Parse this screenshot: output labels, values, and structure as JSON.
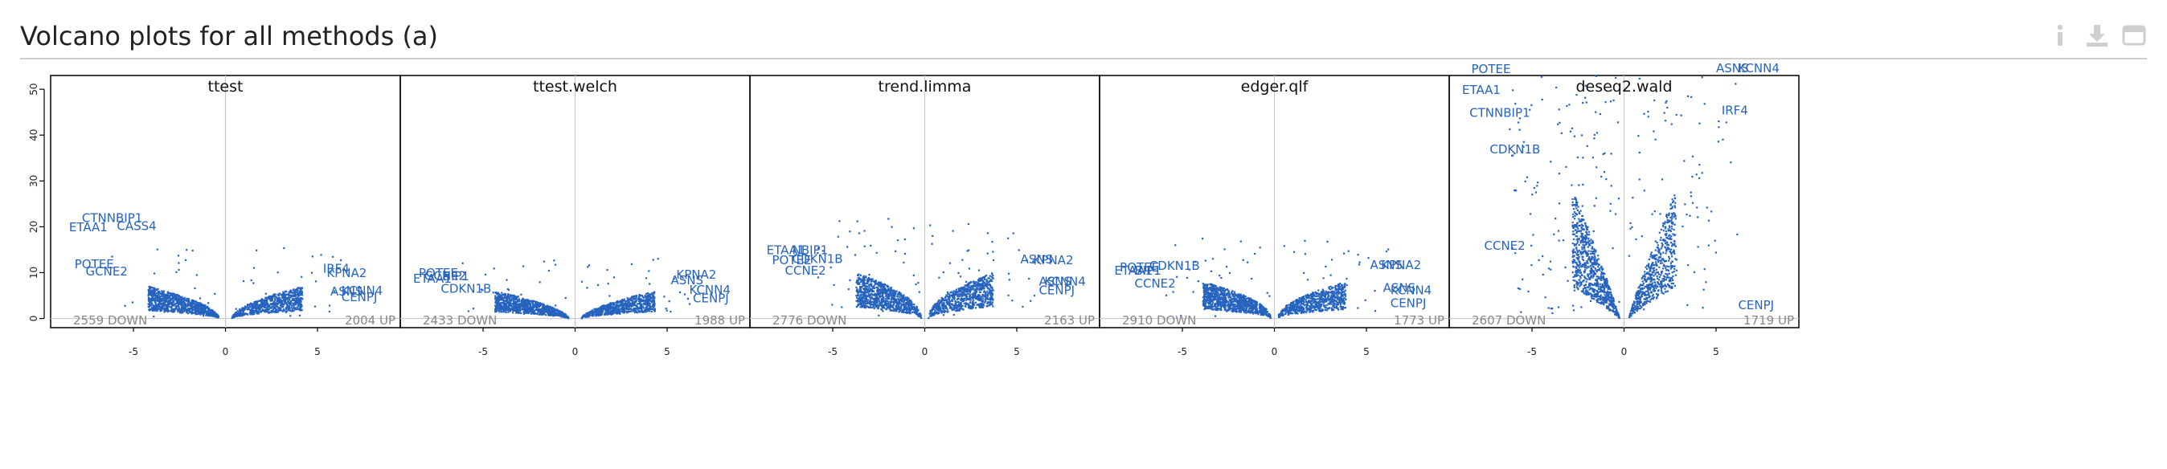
{
  "header": {
    "title": "Volcano plots for all methods (a)"
  },
  "toolbar": {
    "icons": [
      "info-icon",
      "download-icon",
      "expand-icon"
    ]
  },
  "colors": {
    "points": "#2563be",
    "label": "#2563be",
    "axis_line": "#c8c8c8",
    "count_text": "#888888"
  },
  "chart_data": {
    "type": "scatter",
    "shared_axes": {
      "x_ticks": [
        -5,
        0,
        5
      ],
      "y_ticks": [
        0,
        10,
        20,
        30,
        40,
        50
      ],
      "xlim": [
        -9.5,
        9.5
      ],
      "ylim": [
        -2,
        53
      ]
    },
    "panels": [
      {
        "title": "ttest",
        "down_label": "2559 DOWN",
        "up_label": "2004 UP",
        "shape": {
          "width": 2.4,
          "maxY": 7,
          "decay": 0.55,
          "offset": 0.35,
          "sparse": 0.04
        },
        "labels": [
          {
            "text": "CTNNBIP1",
            "x": -7.8,
            "y": 21
          },
          {
            "text": "ETAA1",
            "x": -8.5,
            "y": 19
          },
          {
            "text": "CASS4",
            "x": -5.9,
            "y": 19.3
          },
          {
            "text": "POTEE",
            "x": -8.2,
            "y": 11
          },
          {
            "text": "GCNE2",
            "x": -7.6,
            "y": 9.4
          },
          {
            "text": "IRF4",
            "x": 5.3,
            "y": 10
          },
          {
            "text": "KPNA2",
            "x": 5.5,
            "y": 9
          },
          {
            "text": "ASNS",
            "x": 5.7,
            "y": 5
          },
          {
            "text": "KCNN4",
            "x": 6.3,
            "y": 5.2
          },
          {
            "text": "CENPJ",
            "x": 6.3,
            "y": 3.8
          }
        ]
      },
      {
        "title": "ttest.welch",
        "down_label": "2433 DOWN",
        "up_label": "1988 UP",
        "shape": {
          "width": 2.5,
          "maxY": 6,
          "decay": 0.6,
          "offset": 0.35,
          "sparse": 0.03
        },
        "labels": [
          {
            "text": "POTEE",
            "x": -8.5,
            "y": 9
          },
          {
            "text": "GCNE2",
            "x": -8.2,
            "y": 8.4
          },
          {
            "text": "ETAA1",
            "x": -8.8,
            "y": 7.8
          },
          {
            "text": "BIP1",
            "x": -7.2,
            "y": 8.3
          },
          {
            "text": "CDKN1B",
            "x": -7.3,
            "y": 5.6
          },
          {
            "text": "KPNA2",
            "x": 5.5,
            "y": 8.7
          },
          {
            "text": "ASNS",
            "x": 5.2,
            "y": 7.5
          },
          {
            "text": "KCNN4",
            "x": 6.2,
            "y": 5.4
          },
          {
            "text": "CENPJ",
            "x": 6.4,
            "y": 3.5
          }
        ]
      },
      {
        "title": "trend.limma",
        "down_label": "2776 DOWN",
        "up_label": "2163 UP",
        "shape": {
          "width": 2.2,
          "maxY": 10,
          "decay": 0.5,
          "offset": 0.2,
          "sparse": 0.05
        },
        "labels": [
          {
            "text": "ETAA1",
            "x": -8.6,
            "y": 14
          },
          {
            "text": "NBIP1",
            "x": -7.2,
            "y": 14
          },
          {
            "text": "POTEE",
            "x": -8.3,
            "y": 11.8
          },
          {
            "text": "CDKN1B",
            "x": -7.2,
            "y": 12.1
          },
          {
            "text": "CCNE2",
            "x": -7.6,
            "y": 9.6
          },
          {
            "text": "ASNS",
            "x": 5.2,
            "y": 12
          },
          {
            "text": "KPNA2",
            "x": 5.9,
            "y": 11.8
          },
          {
            "text": "ASNS",
            "x": 6.2,
            "y": 7.2
          },
          {
            "text": "KCNN4",
            "x": 6.5,
            "y": 7.2
          },
          {
            "text": "CENPJ",
            "x": 6.2,
            "y": 5.3
          }
        ]
      },
      {
        "title": "edger.qlf",
        "down_label": "2910 DOWN",
        "up_label": "1773 UP",
        "shape": {
          "width": 2.3,
          "maxY": 8,
          "decay": 0.5,
          "offset": 0.2,
          "sparse": 0.05
        },
        "labels": [
          {
            "text": "POTEE",
            "x": -8.4,
            "y": 10.3
          },
          {
            "text": "CDKN1B",
            "x": -6.8,
            "y": 10.6
          },
          {
            "text": "ETAA1",
            "x": -8.7,
            "y": 9.6
          },
          {
            "text": "BIP1",
            "x": -7.6,
            "y": 9.6
          },
          {
            "text": "CCNE2",
            "x": -7.6,
            "y": 6.8
          },
          {
            "text": "ASNS",
            "x": 5.2,
            "y": 10.8
          },
          {
            "text": "KPNA2",
            "x": 5.8,
            "y": 10.8
          },
          {
            "text": "ASNS",
            "x": 5.9,
            "y": 5.8
          },
          {
            "text": "KCNN4",
            "x": 6.3,
            "y": 5.3
          },
          {
            "text": "CENPJ",
            "x": 6.3,
            "y": 2.5
          }
        ]
      },
      {
        "title": "deseq2.wald",
        "down_label": "2607 DOWN",
        "up_label": "1719 UP",
        "shape": {
          "width": 1.6,
          "maxY": 28,
          "decay": 0.9,
          "offset": 0.25,
          "sparse": 0.15
        },
        "labels": [
          {
            "text": "POTEE",
            "x": -8.3,
            "y": 53.5
          },
          {
            "text": "ETAA1",
            "x": -8.8,
            "y": 49
          },
          {
            "text": "CTNNBIP1",
            "x": -8.4,
            "y": 44
          },
          {
            "text": "CDKN1B",
            "x": -7.3,
            "y": 36
          },
          {
            "text": "CCNE2",
            "x": -7.6,
            "y": 15
          },
          {
            "text": "ASNS",
            "x": 5,
            "y": 53.7
          },
          {
            "text": "KCNN4",
            "x": 6.2,
            "y": 53.7
          },
          {
            "text": "IRF4",
            "x": 5.3,
            "y": 44.5
          },
          {
            "text": "CENPJ",
            "x": 6.2,
            "y": 2
          }
        ]
      }
    ]
  }
}
